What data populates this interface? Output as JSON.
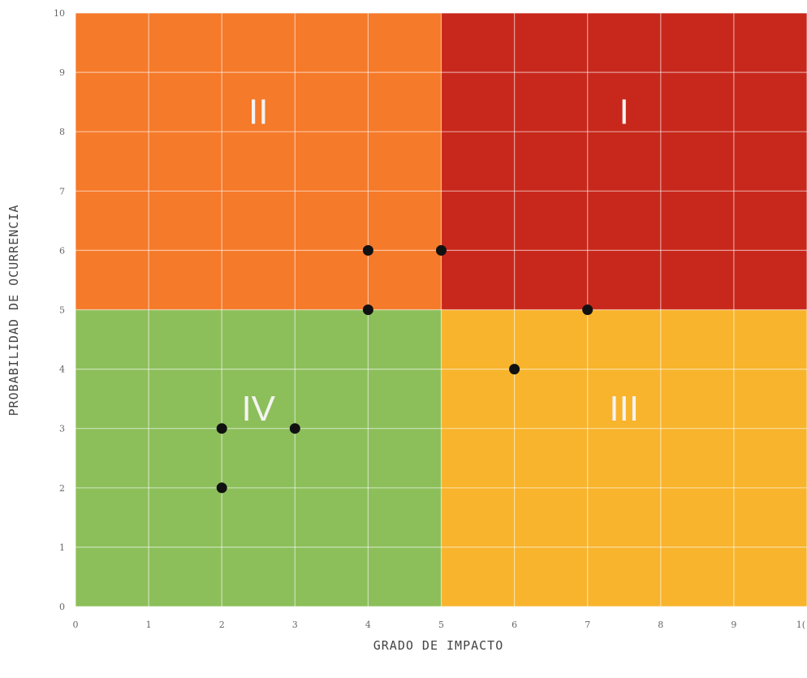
{
  "chart_data": {
    "type": "scatter",
    "title": "",
    "xlabel": "GRADO DE IMPACTO",
    "ylabel": "PROBABILIDAD DE OCURRENCIA",
    "xlim": [
      0,
      10
    ],
    "ylim": [
      0,
      10
    ],
    "x_ticks": [
      "0",
      "1",
      "2",
      "3",
      "4",
      "5",
      "6",
      "7",
      "8",
      "9",
      "1("
    ],
    "y_ticks": [
      "0",
      "1",
      "2",
      "3",
      "4",
      "5",
      "6",
      "7",
      "8",
      "9",
      "10"
    ],
    "grid": true,
    "quadrants": [
      {
        "label": "I",
        "x_range": [
          5,
          10
        ],
        "y_range": [
          5,
          10
        ],
        "color": "#c8281c"
      },
      {
        "label": "II",
        "x_range": [
          0,
          5
        ],
        "y_range": [
          5,
          10
        ],
        "color": "#f57a2a"
      },
      {
        "label": "III",
        "x_range": [
          5,
          10
        ],
        "y_range": [
          0,
          5
        ],
        "color": "#f8b42c"
      },
      {
        "label": "IV",
        "x_range": [
          0,
          5
        ],
        "y_range": [
          0,
          5
        ],
        "color": "#8cbf5a"
      }
    ],
    "points": [
      {
        "x": 4,
        "y": 6
      },
      {
        "x": 5,
        "y": 6
      },
      {
        "x": 4,
        "y": 5
      },
      {
        "x": 7,
        "y": 5
      },
      {
        "x": 6,
        "y": 4
      },
      {
        "x": 2,
        "y": 3
      },
      {
        "x": 3,
        "y": 3
      },
      {
        "x": 2,
        "y": 2
      }
    ],
    "point_color": "#111111"
  }
}
